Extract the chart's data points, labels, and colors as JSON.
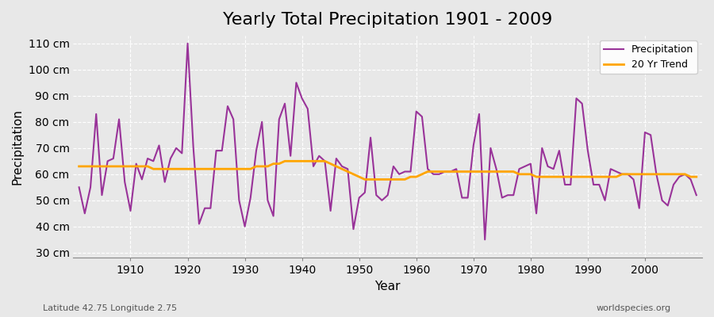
{
  "title": "Yearly Total Precipitation 1901 - 2009",
  "xlabel": "Year",
  "ylabel": "Precipitation",
  "subtitle": "Latitude 42.75 Longitude 2.75",
  "credit": "worldspecies.org",
  "years": [
    1901,
    1902,
    1903,
    1904,
    1905,
    1906,
    1907,
    1908,
    1909,
    1910,
    1911,
    1912,
    1913,
    1914,
    1915,
    1916,
    1917,
    1918,
    1919,
    1920,
    1921,
    1922,
    1923,
    1924,
    1925,
    1926,
    1927,
    1928,
    1929,
    1930,
    1931,
    1932,
    1933,
    1934,
    1935,
    1936,
    1937,
    1938,
    1939,
    1940,
    1941,
    1942,
    1943,
    1944,
    1945,
    1946,
    1947,
    1948,
    1949,
    1950,
    1951,
    1952,
    1953,
    1954,
    1955,
    1956,
    1957,
    1958,
    1959,
    1960,
    1961,
    1962,
    1963,
    1964,
    1965,
    1966,
    1967,
    1968,
    1969,
    1970,
    1971,
    1972,
    1973,
    1974,
    1975,
    1976,
    1977,
    1978,
    1979,
    1980,
    1981,
    1982,
    1983,
    1984,
    1985,
    1986,
    1987,
    1988,
    1989,
    1990,
    1991,
    1992,
    1993,
    1994,
    1995,
    1996,
    1997,
    1998,
    1999,
    2000,
    2001,
    2002,
    2003,
    2004,
    2005,
    2006,
    2007,
    2008,
    2009
  ],
  "precipitation": [
    55,
    45,
    55,
    83,
    52,
    65,
    66,
    81,
    57,
    46,
    64,
    58,
    66,
    65,
    71,
    57,
    66,
    70,
    68,
    110,
    70,
    41,
    47,
    47,
    69,
    69,
    86,
    81,
    50,
    40,
    51,
    69,
    80,
    50,
    44,
    81,
    87,
    67,
    95,
    89,
    85,
    63,
    67,
    65,
    46,
    66,
    63,
    62,
    39,
    51,
    53,
    74,
    52,
    50,
    52,
    63,
    60,
    61,
    61,
    84,
    82,
    62,
    60,
    60,
    61,
    61,
    62,
    51,
    51,
    71,
    83,
    35,
    70,
    62,
    51,
    52,
    52,
    62,
    63,
    64,
    45,
    70,
    63,
    62,
    69,
    56,
    56,
    89,
    87,
    69,
    56,
    56,
    50,
    62,
    61,
    60,
    60,
    58,
    47,
    76,
    75,
    60,
    50,
    48,
    56,
    59,
    60,
    58,
    52
  ],
  "trend": [
    63,
    63,
    63,
    63,
    63,
    63,
    63,
    63,
    63,
    63,
    63,
    63,
    63,
    62,
    62,
    62,
    62,
    62,
    62,
    62,
    62,
    62,
    62,
    62,
    62,
    62,
    62,
    62,
    62,
    62,
    62,
    63,
    63,
    63,
    64,
    64,
    65,
    65,
    65,
    65,
    65,
    65,
    65,
    65,
    64,
    63,
    62,
    61,
    60,
    59,
    58,
    58,
    58,
    58,
    58,
    58,
    58,
    58,
    59,
    59,
    60,
    61,
    61,
    61,
    61,
    61,
    61,
    61,
    61,
    61,
    61,
    61,
    61,
    61,
    61,
    61,
    61,
    60,
    60,
    60,
    59,
    59,
    59,
    59,
    59,
    59,
    59,
    59,
    59,
    59,
    59,
    59,
    59,
    59,
    59,
    60,
    60,
    60,
    60,
    60,
    60,
    60,
    60,
    60,
    60,
    60,
    60,
    59,
    59
  ],
  "precip_color": "#993399",
  "trend_color": "#FFA500",
  "background_color": "#e8e8e8",
  "plot_bg_color": "#e8e8e8",
  "grid_color": "#ffffff",
  "ylim": [
    28,
    113
  ],
  "yticks": [
    30,
    40,
    50,
    60,
    70,
    80,
    90,
    100,
    110
  ],
  "ytick_labels": [
    "30 cm",
    "40 cm",
    "50 cm",
    "60 cm",
    "70 cm",
    "80 cm",
    "90 cm",
    "100 cm",
    "110 cm"
  ],
  "xticks": [
    1910,
    1920,
    1930,
    1940,
    1950,
    1960,
    1970,
    1980,
    1990,
    2000
  ],
  "title_fontsize": 16,
  "axis_fontsize": 10,
  "legend_fontsize": 9
}
